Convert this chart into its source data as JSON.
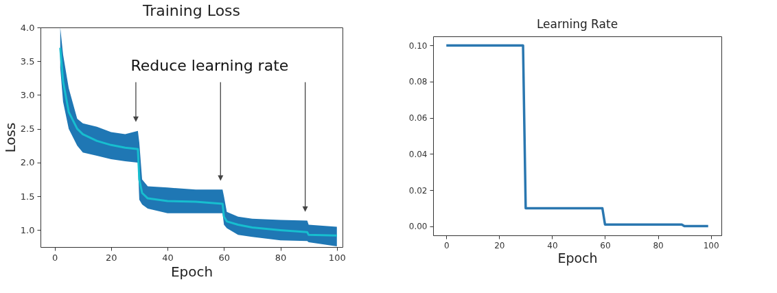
{
  "chart_data": [
    {
      "type": "line",
      "title": "Training Loss",
      "xlabel": "Epoch",
      "ylabel": "Loss",
      "xlim": [
        -5,
        102
      ],
      "ylim": [
        0.75,
        4.0
      ],
      "xticks": [
        0,
        20,
        40,
        60,
        80,
        100
      ],
      "yticks": [
        {
          "value": 1,
          "label": "1.0"
        },
        {
          "value": 1.5,
          "label": "1.5"
        },
        {
          "value": 2,
          "label": "2.0"
        },
        {
          "value": 2.5,
          "label": "2.5"
        },
        {
          "value": 3,
          "label": "3.0"
        },
        {
          "value": 3.5,
          "label": "3.5"
        },
        {
          "value": 4,
          "label": "4.0"
        }
      ],
      "grid": false,
      "annotations": [
        "Reduce learning rate"
      ],
      "series": [
        {
          "color": "#17becf",
          "x": [
            2,
            3,
            5,
            8,
            10,
            15,
            20,
            25,
            29.5,
            30,
            31,
            33,
            40,
            50,
            59.5,
            60,
            61,
            65,
            70,
            80,
            89.5,
            90,
            100
          ],
          "values": [
            3.7,
            3.2,
            2.75,
            2.5,
            2.42,
            2.32,
            2.26,
            2.22,
            2.2,
            1.75,
            1.55,
            1.47,
            1.43,
            1.42,
            1.39,
            1.2,
            1.13,
            1.08,
            1.04,
            1.0,
            0.97,
            0.93,
            0.92
          ],
          "upper": [
            4.0,
            3.6,
            3.1,
            2.65,
            2.58,
            2.53,
            2.45,
            2.42,
            2.47,
            2.3,
            1.75,
            1.65,
            1.63,
            1.6,
            1.6,
            1.5,
            1.27,
            1.2,
            1.17,
            1.15,
            1.14,
            1.08,
            1.05
          ],
          "lower": [
            3.4,
            2.9,
            2.5,
            2.25,
            2.15,
            2.1,
            2.05,
            2.02,
            2.0,
            1.45,
            1.38,
            1.32,
            1.25,
            1.25,
            1.25,
            1.08,
            1.03,
            0.93,
            0.9,
            0.85,
            0.84,
            0.82,
            0.76
          ]
        }
      ]
    },
    {
      "type": "line",
      "title": "Learning Rate",
      "xlabel": "Epoch",
      "xlim": [
        -5,
        104
      ],
      "ylim": [
        -0.005,
        0.105
      ],
      "xticks": [
        0,
        20,
        40,
        60,
        80,
        100
      ],
      "yticks": [
        {
          "value": 0,
          "label": "0.00"
        },
        {
          "value": 0.02,
          "label": "0.02"
        },
        {
          "value": 0.04,
          "label": "0.04"
        },
        {
          "value": 0.06,
          "label": "0.06"
        },
        {
          "value": 0.08,
          "label": "0.08"
        },
        {
          "value": 0.1,
          "label": "0.10"
        }
      ],
      "grid": false,
      "series": [
        {
          "color": "#2a77b0",
          "x": [
            0,
            29,
            30,
            59,
            60,
            89,
            90,
            99
          ],
          "values": [
            0.1,
            0.1,
            0.01,
            0.01,
            0.001,
            0.001,
            0.0001,
            0.0001
          ]
        }
      ]
    }
  ]
}
